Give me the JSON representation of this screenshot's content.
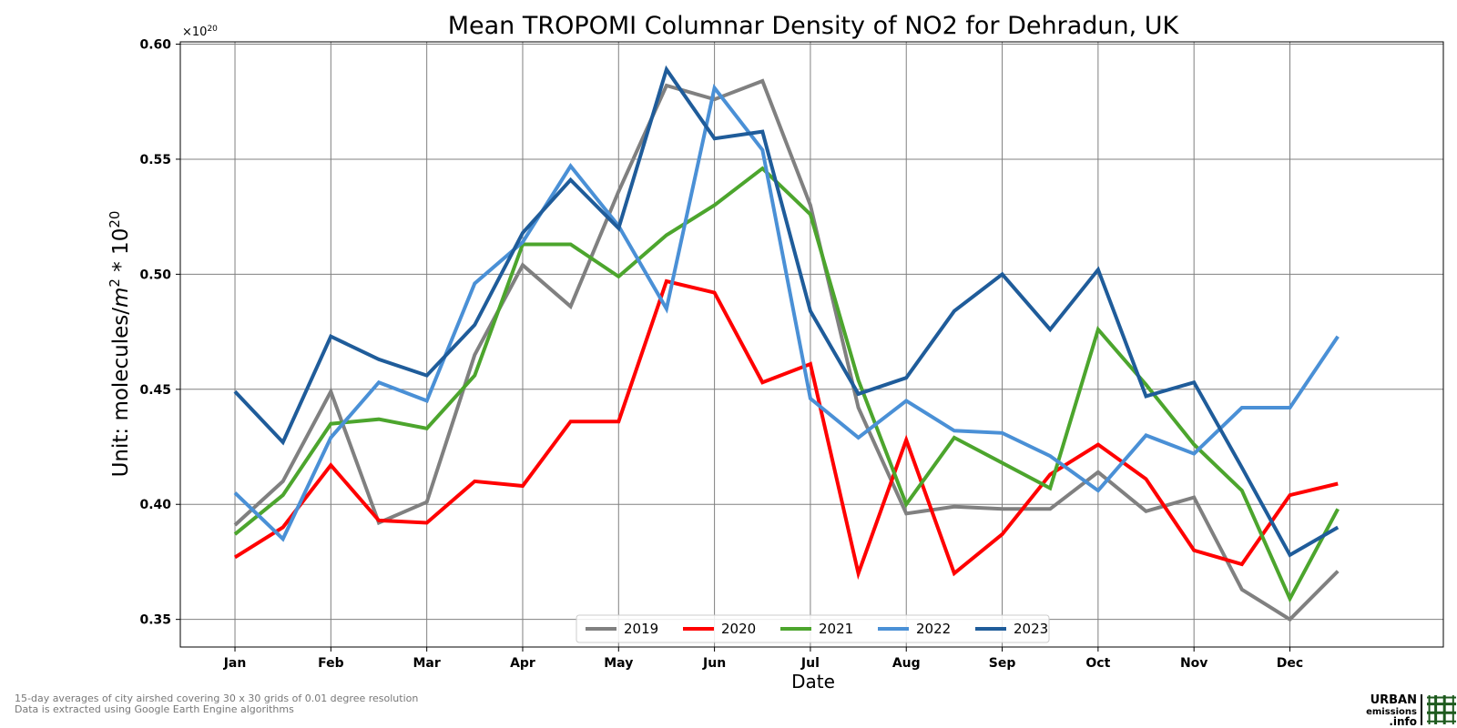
{
  "chart_data": {
    "type": "line",
    "title": "Mean TROPOMI Columnar Density of NO2 for Dehradun, UK",
    "xlabel": "Date",
    "ylabel_prefix": "Unit: molecules/",
    "ylabel_unit": "m",
    "ylabel_sup1": "2",
    "ylabel_mid": " * 10",
    "ylabel_sup2": "20",
    "multiplier_base": "×10",
    "multiplier_exp": "20",
    "ylim": [
      0.338,
      0.601
    ],
    "yticks": [
      0.35,
      0.4,
      0.45,
      0.5,
      0.55,
      0.6
    ],
    "ytick_labels": [
      "0.35",
      "0.40",
      "0.45",
      "0.50",
      "0.55",
      "0.60"
    ],
    "xlim": [
      -0.57,
      12.6
    ],
    "xticks": [
      0,
      1,
      2,
      3,
      4,
      5,
      6,
      7,
      8,
      9,
      10,
      11
    ],
    "xtick_labels": [
      "Jan",
      "Feb",
      "Mar",
      "Apr",
      "May",
      "Jun",
      "Jul",
      "Aug",
      "Sep",
      "Oct",
      "Nov",
      "Dec"
    ],
    "x": [
      0,
      0.5,
      1,
      1.5,
      2,
      2.5,
      3,
      3.5,
      4,
      4.5,
      5,
      5.5,
      6,
      6.5,
      7,
      7.5,
      8,
      8.5,
      9,
      9.5,
      10,
      10.5,
      11,
      11.5
    ],
    "grid": true,
    "legend_position": "bottom-center",
    "series": [
      {
        "name": "2019",
        "color": "#808080",
        "values": [
          0.391,
          0.41,
          0.449,
          0.392,
          0.401,
          0.465,
          0.504,
          0.486,
          0.536,
          0.582,
          0.576,
          0.584,
          0.53,
          0.442,
          0.396,
          0.399,
          0.398,
          0.398,
          0.414,
          0.397,
          0.403,
          0.363,
          0.35,
          0.371
        ]
      },
      {
        "name": "2020",
        "color": "#ff0000",
        "values": [
          0.377,
          0.39,
          0.417,
          0.393,
          0.392,
          0.41,
          0.408,
          0.436,
          0.436,
          0.497,
          0.492,
          0.453,
          0.461,
          0.37,
          0.428,
          0.37,
          0.387,
          0.413,
          0.426,
          0.411,
          0.38,
          0.374,
          0.404,
          0.409
        ]
      },
      {
        "name": "2021",
        "color": "#4ca52d",
        "values": [
          0.387,
          0.404,
          0.435,
          0.437,
          0.433,
          0.456,
          0.513,
          0.513,
          0.499,
          0.517,
          0.53,
          0.546,
          0.526,
          0.454,
          0.4,
          0.429,
          0.418,
          0.407,
          0.476,
          0.452,
          0.426,
          0.406,
          0.359,
          0.398
        ]
      },
      {
        "name": "2022",
        "color": "#4a90d6",
        "values": [
          0.405,
          0.385,
          0.429,
          0.453,
          0.445,
          0.496,
          0.514,
          0.547,
          0.521,
          0.485,
          0.581,
          0.554,
          0.446,
          0.429,
          0.445,
          0.432,
          0.431,
          0.421,
          0.406,
          0.43,
          0.422,
          0.442,
          0.442,
          0.473
        ]
      },
      {
        "name": "2023",
        "color": "#1f5c9a",
        "values": [
          0.449,
          0.427,
          0.473,
          0.463,
          0.456,
          0.478,
          0.518,
          0.541,
          0.52,
          0.589,
          0.559,
          0.562,
          0.484,
          0.448,
          0.455,
          0.484,
          0.5,
          0.476,
          0.502,
          0.447,
          0.453,
          0.416,
          0.378,
          0.39
        ]
      }
    ]
  },
  "footnote": {
    "line1": "15-day averages of city airshed covering 30 x 30 grids of 0.01 degree resolution",
    "line2": "Data is extracted using Google Earth Engine algorithms"
  },
  "logo": {
    "line1": "URBAN",
    "line2": "emissions",
    "line3": ".info",
    "color": "#1e5a1e"
  }
}
